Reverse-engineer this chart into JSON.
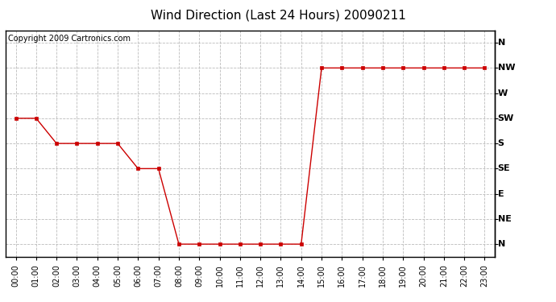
{
  "title": "Wind Direction (Last 24 Hours) 20090211",
  "copyright_text": "Copyright 2009 Cartronics.com",
  "x_labels": [
    "00:00",
    "01:00",
    "02:00",
    "03:00",
    "04:00",
    "05:00",
    "06:00",
    "07:00",
    "08:00",
    "09:00",
    "10:00",
    "11:00",
    "12:00",
    "13:00",
    "14:00",
    "15:00",
    "16:00",
    "17:00",
    "18:00",
    "19:00",
    "20:00",
    "21:00",
    "22:00",
    "23:00"
  ],
  "y_tick_positions": [
    8,
    7,
    6,
    5,
    4,
    3,
    2,
    1,
    0
  ],
  "y_tick_labels": [
    "N",
    "NW",
    "W",
    "SW",
    "S",
    "SE",
    "E",
    "NE",
    "N"
  ],
  "wind_data": [
    5,
    5,
    4,
    4,
    4,
    4,
    3,
    3,
    0,
    0,
    0,
    0,
    0,
    0,
    0,
    7,
    7,
    7,
    7,
    7,
    7,
    7,
    7,
    7
  ],
  "line_color": "#cc0000",
  "marker": "s",
  "marker_size": 3,
  "bg_color": "#ffffff",
  "grid_color": "#bbbbbb",
  "title_fontsize": 11,
  "copyright_fontsize": 7,
  "tick_fontsize": 8,
  "xtick_fontsize": 7
}
